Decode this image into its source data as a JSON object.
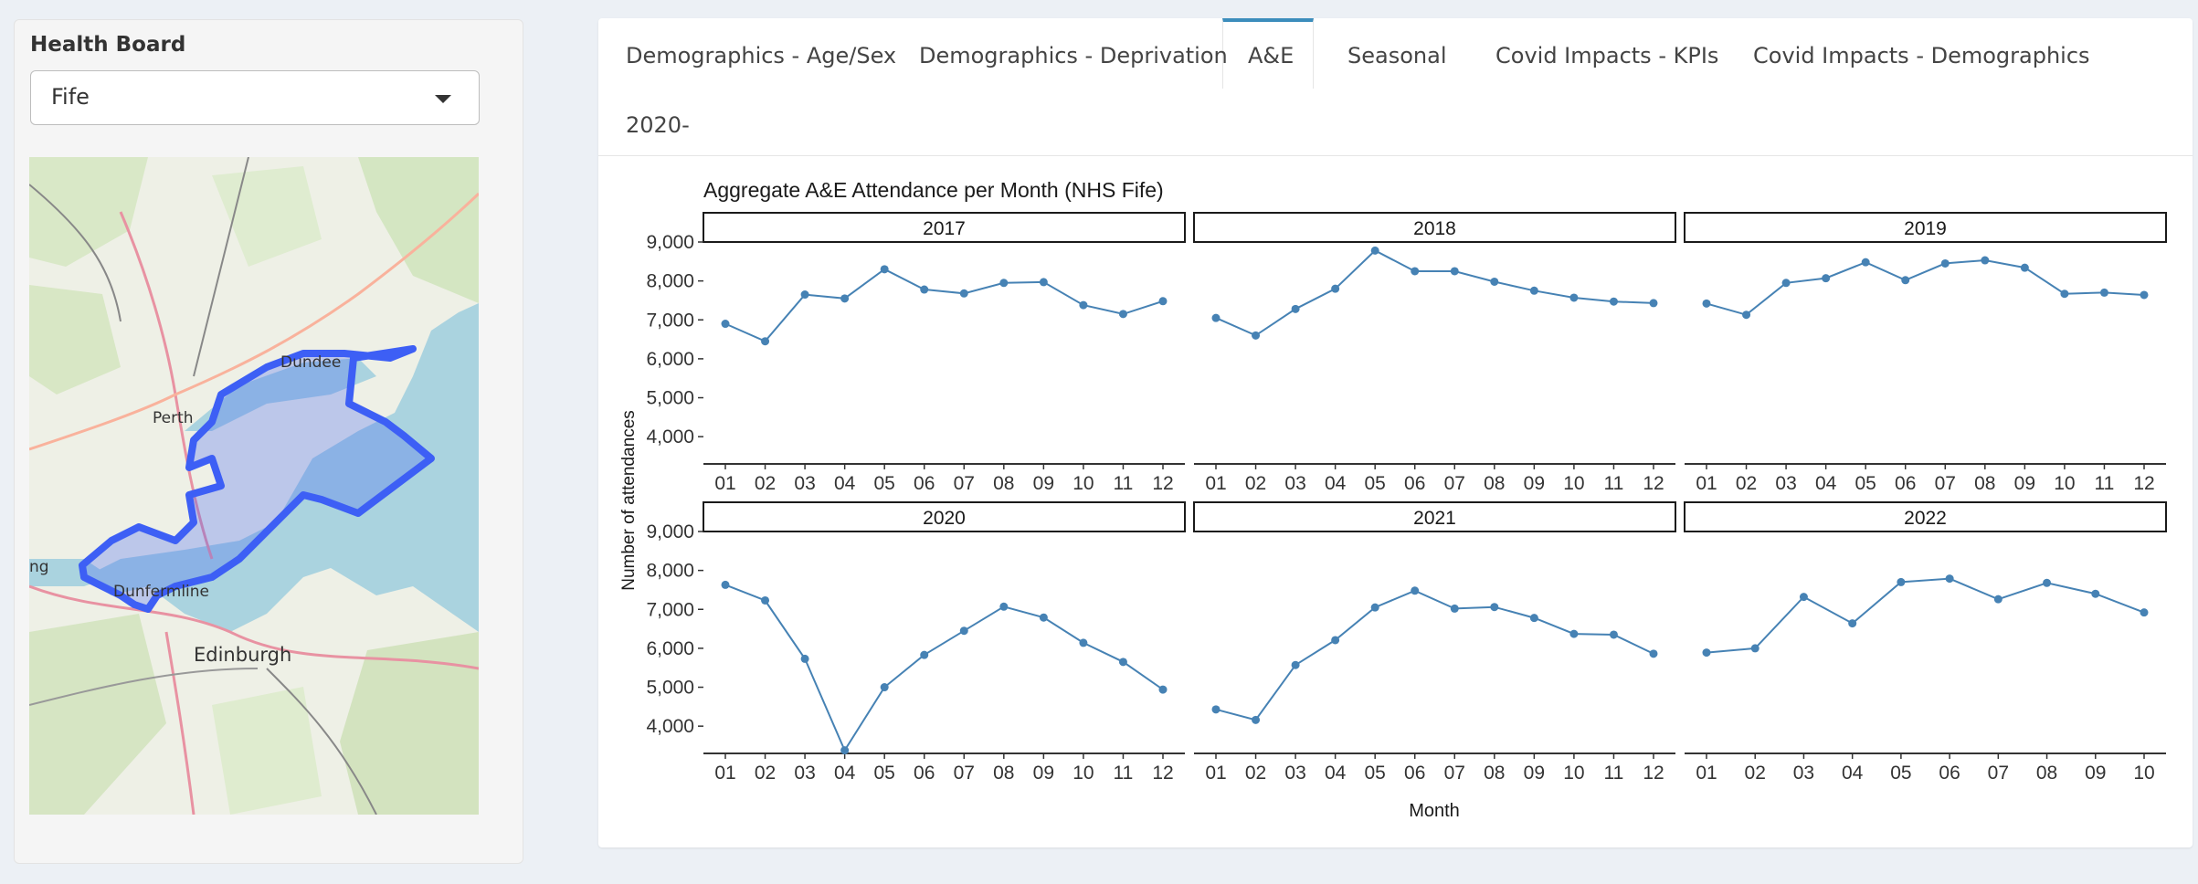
{
  "sidebar": {
    "label": "Health Board",
    "select_value": "Fife",
    "map_labels": [
      "Dundee",
      "Perth",
      "Dunfermline",
      "Edinburgh",
      "ng"
    ]
  },
  "tabs": [
    {
      "label": "Demographics - Age/Sex"
    },
    {
      "label": "Demographics - Deprivation"
    },
    {
      "label": "A&E",
      "active": true
    },
    {
      "label": "Seasonal"
    },
    {
      "label": "Covid Impacts - KPIs"
    },
    {
      "label": "Covid Impacts - Demographics"
    },
    {
      "label": "2020-"
    }
  ],
  "colors": {
    "line": "#4682b4",
    "accent": "#3c8dbc",
    "map_region": "#3d5ff5"
  },
  "chart_data": {
    "type": "line",
    "title": "Aggregate A&E Attendance per Month (NHS Fife)",
    "xlabel": "Month",
    "ylabel": "Number of attendances",
    "ylim": [
      3300,
      9000
    ],
    "yticks": [
      4000,
      5000,
      6000,
      7000,
      8000,
      9000
    ],
    "ytick_labels": [
      "4,000",
      "5,000",
      "6,000",
      "7,000",
      "8,000",
      "9,000"
    ],
    "facet_by": "year",
    "panels": [
      {
        "year": "2017",
        "months": [
          "01",
          "02",
          "03",
          "04",
          "05",
          "06",
          "07",
          "08",
          "09",
          "10",
          "11",
          "12"
        ],
        "values": [
          6900,
          6450,
          7650,
          7550,
          8300,
          7780,
          7680,
          7950,
          7970,
          7380,
          7150,
          7480
        ]
      },
      {
        "year": "2018",
        "months": [
          "01",
          "02",
          "03",
          "04",
          "05",
          "06",
          "07",
          "08",
          "09",
          "10",
          "11",
          "12"
        ],
        "values": [
          7050,
          6600,
          7280,
          7800,
          8780,
          8250,
          8250,
          7980,
          7750,
          7570,
          7470,
          7430
        ]
      },
      {
        "year": "2019",
        "months": [
          "01",
          "02",
          "03",
          "04",
          "05",
          "06",
          "07",
          "08",
          "09",
          "10",
          "11",
          "12"
        ],
        "values": [
          7420,
          7130,
          7950,
          8070,
          8480,
          8020,
          8450,
          8530,
          8340,
          7670,
          7700,
          7640
        ]
      },
      {
        "year": "2020",
        "months": [
          "01",
          "02",
          "03",
          "04",
          "05",
          "06",
          "07",
          "08",
          "09",
          "10",
          "11",
          "12"
        ],
        "values": [
          7630,
          7230,
          5730,
          3380,
          5000,
          5830,
          6450,
          7070,
          6790,
          6140,
          5650,
          4940
        ]
      },
      {
        "year": "2021",
        "months": [
          "01",
          "02",
          "03",
          "04",
          "05",
          "06",
          "07",
          "08",
          "09",
          "10",
          "11",
          "12"
        ],
        "values": [
          4430,
          4160,
          5570,
          6210,
          7050,
          7480,
          7020,
          7060,
          6780,
          6370,
          6350,
          5860
        ]
      },
      {
        "year": "2022",
        "months": [
          "01",
          "02",
          "03",
          "04",
          "05",
          "06",
          "07",
          "08",
          "09",
          "10"
        ],
        "values": [
          5890,
          6000,
          7320,
          6640,
          7700,
          7790,
          7260,
          7680,
          7400,
          6920
        ]
      }
    ]
  }
}
